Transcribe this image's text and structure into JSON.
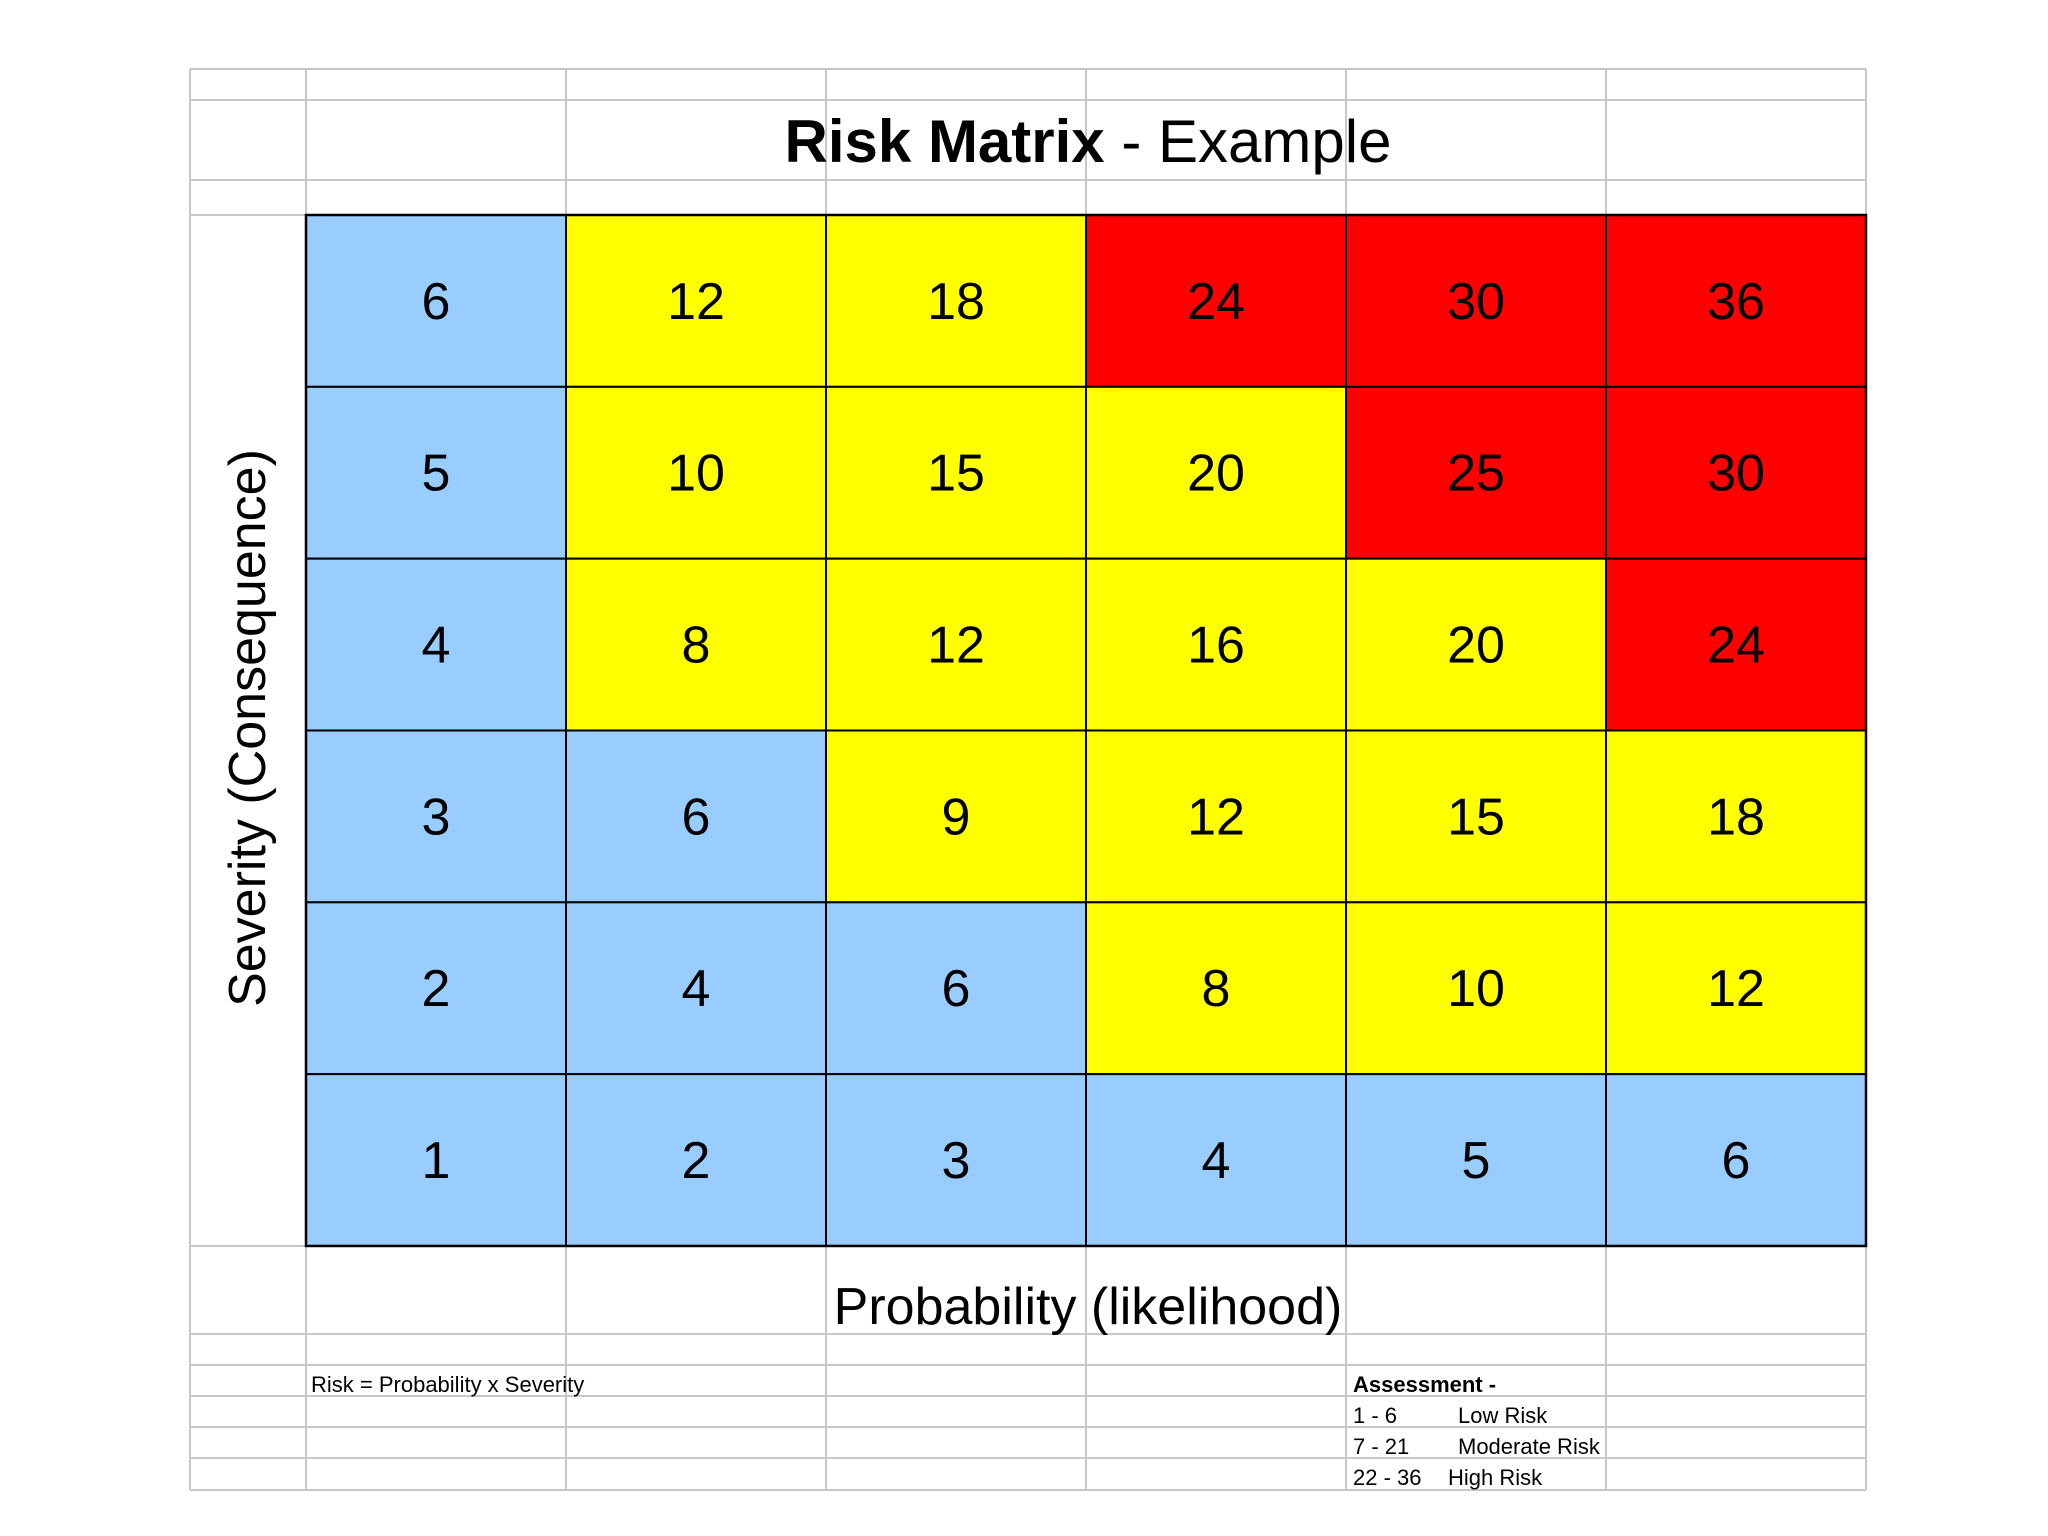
{
  "title": {
    "bold": "Risk Matrix",
    "rest": " - Example"
  },
  "xlabel": "Probability (likelihood)",
  "ylabel": "Severity (Consequence)",
  "formula": "Risk = Probability x Severity",
  "assessment": {
    "heading": "Assessment -",
    "rows": [
      {
        "range": "1 - 6",
        "label": "Low Risk",
        "color": "#99CCFF"
      },
      {
        "range": "7 - 21",
        "label": "Moderate Risk",
        "color": "#FFFF00"
      },
      {
        "range": "22 - 36",
        "label": "High Risk",
        "color": "#FF0000"
      }
    ]
  },
  "colors": {
    "low": "#99CCFF",
    "moderate": "#FFFF00",
    "high": "#FF0000",
    "gridline": "#c8c8c8",
    "border": "#000000"
  },
  "chart_data": {
    "type": "heatmap",
    "x": [
      1,
      2,
      3,
      4,
      5,
      6
    ],
    "y": [
      1,
      2,
      3,
      4,
      5,
      6
    ],
    "values_top_to_bottom": [
      [
        6,
        12,
        18,
        24,
        30,
        36
      ],
      [
        5,
        10,
        15,
        20,
        25,
        30
      ],
      [
        4,
        8,
        12,
        16,
        20,
        24
      ],
      [
        3,
        6,
        9,
        12,
        15,
        18
      ],
      [
        2,
        4,
        6,
        8,
        10,
        12
      ],
      [
        1,
        2,
        3,
        4,
        5,
        6
      ]
    ],
    "categories_top_to_bottom": [
      [
        "low",
        "moderate",
        "moderate",
        "high",
        "high",
        "high"
      ],
      [
        "low",
        "moderate",
        "moderate",
        "moderate",
        "high",
        "high"
      ],
      [
        "low",
        "moderate",
        "moderate",
        "moderate",
        "moderate",
        "high"
      ],
      [
        "low",
        "low",
        "moderate",
        "moderate",
        "moderate",
        "moderate"
      ],
      [
        "low",
        "low",
        "low",
        "moderate",
        "moderate",
        "moderate"
      ],
      [
        "low",
        "low",
        "low",
        "low",
        "low",
        "low"
      ]
    ]
  }
}
